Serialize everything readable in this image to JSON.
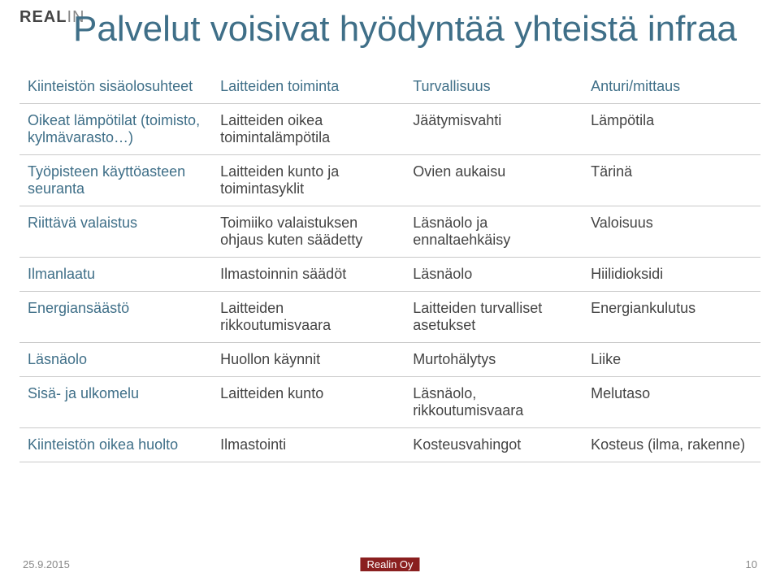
{
  "logo": {
    "part1": "REAL",
    "part2": "IN"
  },
  "title": "Palvelut voisivat hyödyntää yhteistä infraa",
  "table": {
    "header": [
      "Kiinteistön sisäolosuhteet",
      "Laitteiden toiminta",
      "Turvallisuus",
      "Anturi/mittaus"
    ],
    "rows": [
      [
        "Oikeat lämpötilat (toimisto, kylmävarasto…)",
        "Laitteiden oikea toimintalämpötila",
        "Jäätymisvahti",
        "Lämpötila"
      ],
      [
        "Työpisteen käyttöasteen seuranta",
        "Laitteiden kunto ja toimintasyklit",
        "Ovien aukaisu",
        "Tärinä"
      ],
      [
        "Riittävä valaistus",
        "Toimiiko valaistuksen ohjaus kuten säädetty",
        "Läsnäolo ja ennaltaehkäisy",
        "Valoisuus"
      ],
      [
        "Ilmanlaatu",
        "Ilmastoinnin säädöt",
        "Läsnäolo",
        "Hiilidioksidi"
      ],
      [
        "Energiansäästö",
        "Laitteiden rikkoutumisvaara",
        "Laitteiden turvalliset asetukset",
        "Energiankulutus"
      ],
      [
        "Läsnäolo",
        "Huollon käynnit",
        "Murtohälytys",
        "Liike"
      ],
      [
        "Sisä- ja ulkomelu",
        "Laitteiden kunto",
        "Läsnäolo, rikkoutumisvaara",
        "Melutaso"
      ],
      [
        "Kiinteistön oikea huolto",
        "Ilmastointi",
        "Kosteusvahingot",
        "Kosteus (ilma, rakenne)"
      ]
    ]
  },
  "footer": {
    "date": "25.9.2015",
    "center": "Realin Oy",
    "page": "10"
  }
}
